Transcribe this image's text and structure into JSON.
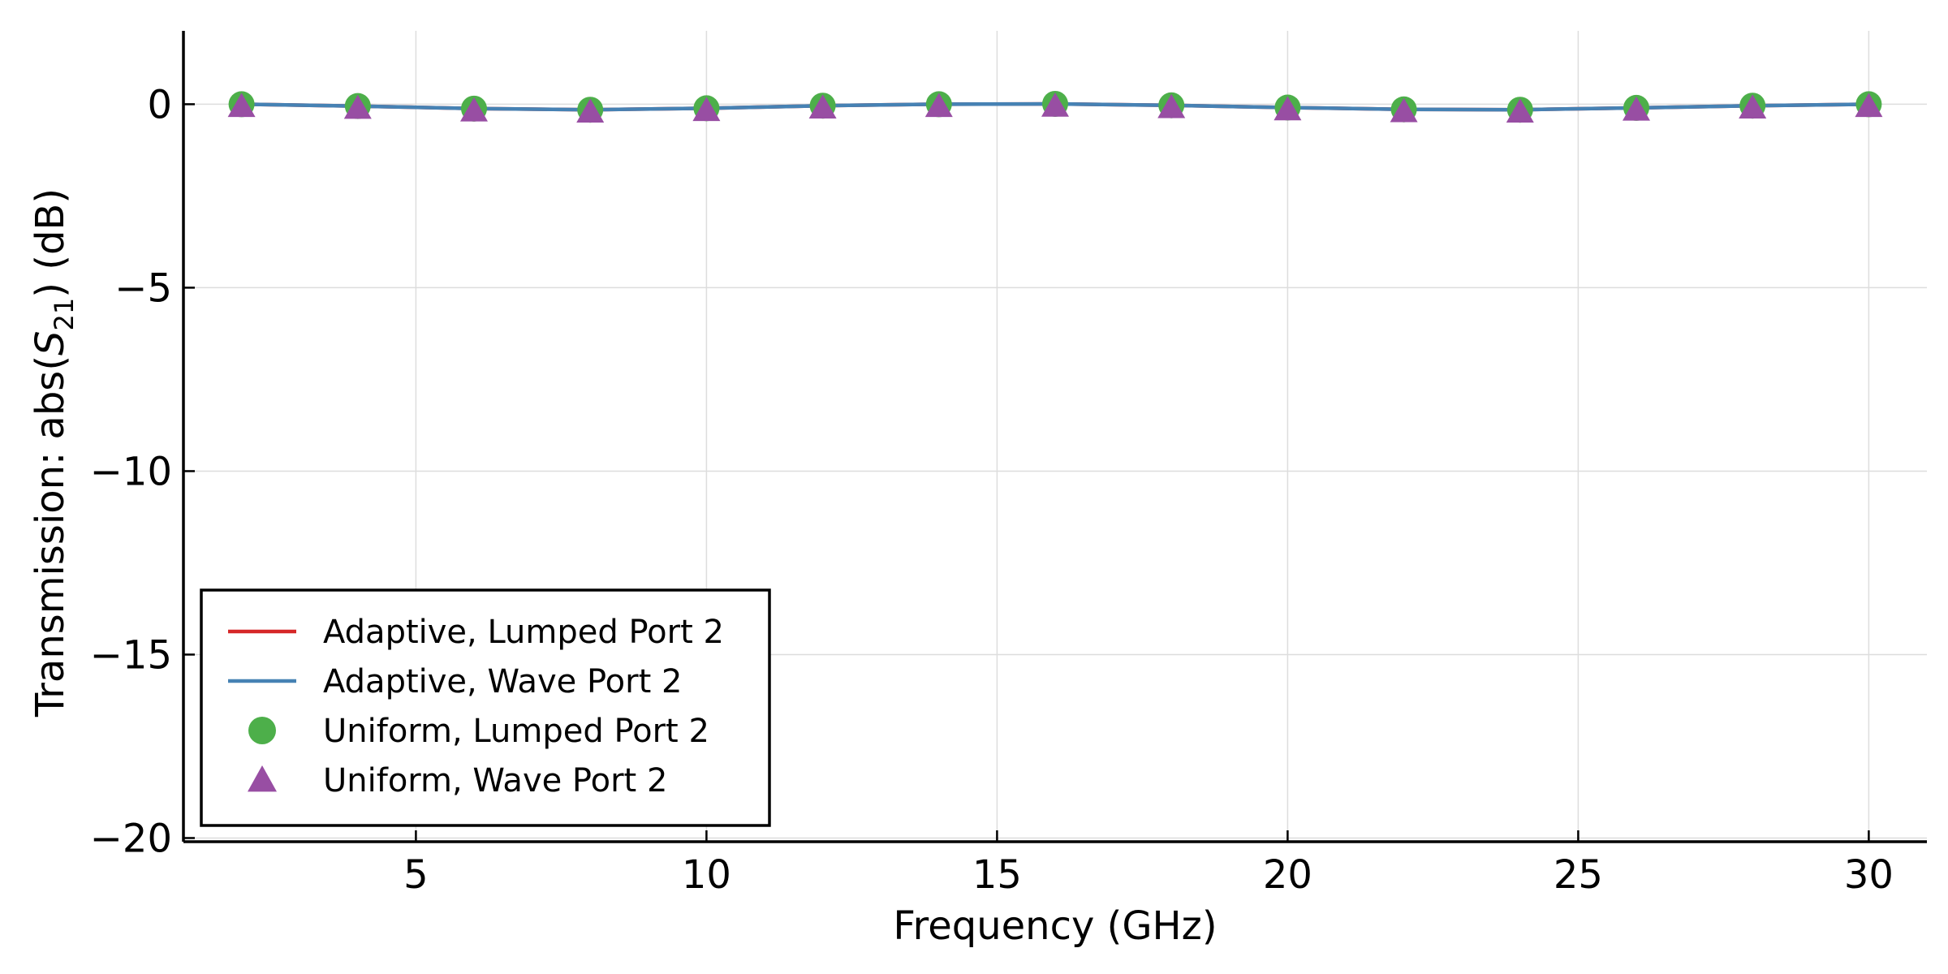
{
  "chart_data": {
    "type": "line",
    "xlabel": "Frequency  (GHz)",
    "ylabel": "Transmission: abs(S21)  (dB)",
    "ylabel_parts": {
      "prefix": "Transmission: abs(",
      "symbol": "S",
      "subscript": "21",
      "suffix": ")  (dB)"
    },
    "xlim": [
      1,
      31
    ],
    "ylim": [
      -20.1,
      2
    ],
    "xticks": [
      5,
      10,
      15,
      20,
      25,
      30
    ],
    "yticks": [
      0,
      -5,
      -10,
      -15,
      -20
    ],
    "xtick_labels": [
      "5",
      "10",
      "15",
      "20",
      "25",
      "30"
    ],
    "ytick_labels": [
      "0",
      "−5",
      "−10",
      "−15",
      "−20"
    ],
    "grid": true,
    "legend_position": "lower-left",
    "x": [
      2,
      4,
      6,
      8,
      10,
      12,
      14,
      16,
      18,
      20,
      22,
      24,
      26,
      28,
      30
    ],
    "series": [
      {
        "name": "Adaptive, Lumped Port 2",
        "style": "line",
        "color": "#d62728",
        "x": [
          2,
          4,
          6,
          8,
          10,
          12,
          14,
          16,
          18,
          20,
          22,
          24,
          26,
          28,
          30
        ],
        "values": [
          0,
          -0.05,
          -0.12,
          -0.15,
          -0.11,
          -0.04,
          0.0,
          0.01,
          -0.03,
          -0.09,
          -0.14,
          -0.15,
          -0.1,
          -0.04,
          0
        ]
      },
      {
        "name": "Adaptive, Wave Port 2",
        "style": "line",
        "color": "#4682b4",
        "x": [
          2,
          4,
          6,
          8,
          10,
          12,
          14,
          16,
          18,
          20,
          22,
          24,
          26,
          28,
          30
        ],
        "values": [
          0,
          -0.05,
          -0.12,
          -0.15,
          -0.11,
          -0.04,
          0.0,
          0.01,
          -0.03,
          -0.09,
          -0.14,
          -0.15,
          -0.1,
          -0.04,
          0
        ]
      },
      {
        "name": "Uniform, Lumped Port 2",
        "style": "circle",
        "color": "#4daf4a",
        "x": [
          2,
          4,
          6,
          8,
          10,
          12,
          14,
          16,
          18,
          20,
          22,
          24,
          26,
          28,
          30
        ],
        "values": [
          0,
          -0.05,
          -0.12,
          -0.15,
          -0.11,
          -0.04,
          0.0,
          0.01,
          -0.03,
          -0.09,
          -0.14,
          -0.15,
          -0.1,
          -0.04,
          0
        ]
      },
      {
        "name": "Uniform, Wave Port 2",
        "style": "triangle",
        "color": "#984ea3",
        "x": [
          2,
          4,
          6,
          8,
          10,
          12,
          14,
          16,
          18,
          20,
          22,
          24,
          26,
          28,
          30
        ],
        "values": [
          0,
          -0.05,
          -0.12,
          -0.15,
          -0.11,
          -0.04,
          0.0,
          0.01,
          -0.03,
          -0.09,
          -0.14,
          -0.15,
          -0.1,
          -0.04,
          0
        ]
      }
    ]
  }
}
